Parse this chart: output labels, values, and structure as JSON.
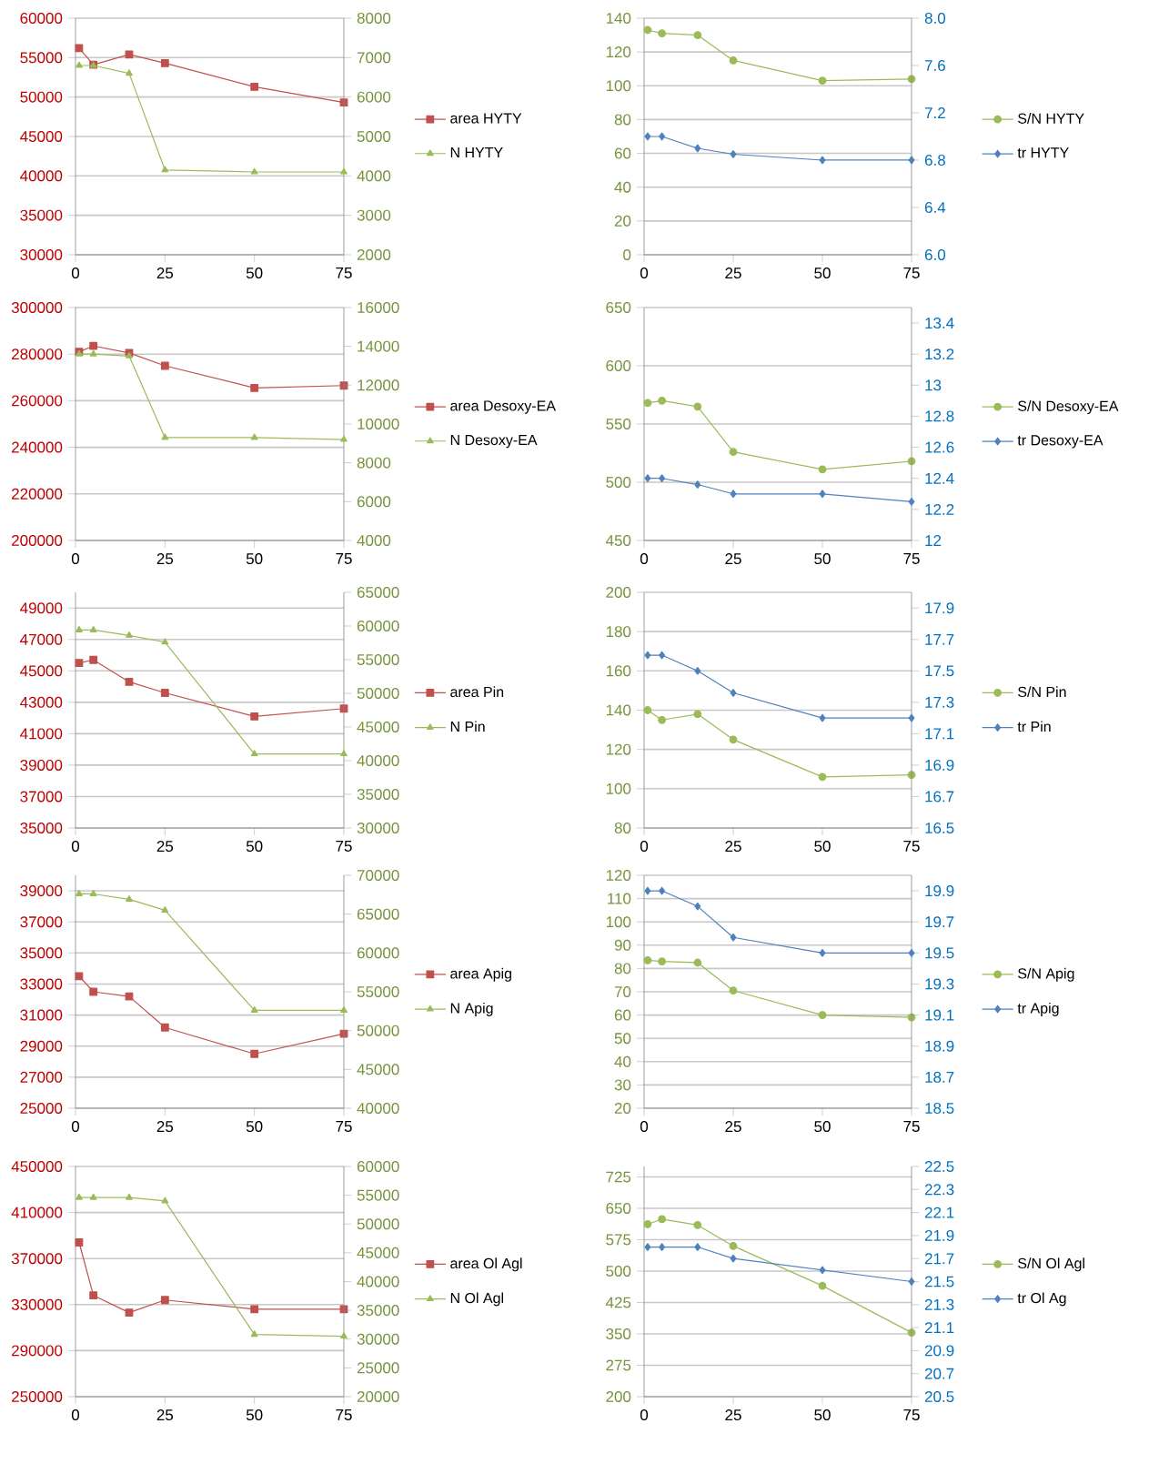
{
  "chart_data": [
    {
      "type": "line",
      "x": [
        1,
        5,
        15,
        25,
        50,
        75
      ],
      "xlim": [
        0,
        75
      ],
      "xticks": [
        0,
        25,
        50,
        75
      ],
      "ylim": [
        30000,
        60000
      ],
      "yticks": [
        30000,
        35000,
        40000,
        45000,
        50000,
        55000,
        60000
      ],
      "y2lim": [
        2000,
        8000
      ],
      "y2ticks": [
        2000,
        3000,
        4000,
        5000,
        6000,
        7000,
        8000
      ],
      "grid": "y",
      "legend": "right",
      "series": [
        {
          "name": "area HYTY",
          "color": "#c0504d",
          "marker": "square",
          "values": [
            56200,
            54100,
            55400,
            54300,
            51300,
            49300
          ]
        },
        {
          "name": "N HYTY",
          "color": "#9bbb59",
          "marker": "triangle",
          "axis": "y2",
          "values": [
            6800,
            6800,
            6600,
            4150,
            4100,
            4100
          ]
        }
      ]
    },
    {
      "type": "line",
      "x": [
        1,
        5,
        15,
        25,
        50,
        75
      ],
      "xlim": [
        0,
        75
      ],
      "xticks": [
        0,
        25,
        50,
        75
      ],
      "ylim": [
        0,
        140
      ],
      "yticks": [
        0,
        20,
        40,
        60,
        80,
        100,
        120,
        140
      ],
      "y2lim": [
        6.0,
        8.0
      ],
      "y2ticks": [
        {
          "value": 6.0,
          "label": "6.0"
        },
        6.4,
        6.8,
        7.2,
        7.6,
        {
          "value": 8.0,
          "label": "8.0"
        }
      ],
      "grid": "y",
      "legend": "right",
      "series": [
        {
          "name": "S/N HYTY",
          "color": "#9bbb59",
          "marker": "circle",
          "values": [
            133,
            131,
            130,
            115,
            103,
            104
          ]
        },
        {
          "name": "tr HYTY",
          "color": "#4f81bd",
          "marker": "diamond",
          "axis": "y2",
          "values": [
            7.0,
            7.0,
            6.9,
            6.85,
            6.8,
            6.8
          ]
        }
      ]
    },
    {
      "type": "line",
      "x": [
        1,
        5,
        15,
        25,
        50,
        75
      ],
      "xlim": [
        0,
        75
      ],
      "xticks": [
        0,
        25,
        50,
        75
      ],
      "ylim": [
        200000,
        300000
      ],
      "yticks": [
        200000,
        220000,
        240000,
        260000,
        280000,
        300000
      ],
      "y2lim": [
        4000,
        16000
      ],
      "y2ticks": [
        4000,
        6000,
        8000,
        10000,
        12000,
        14000,
        16000
      ],
      "grid": "y",
      "legend": "right",
      "series": [
        {
          "name": "area Desoxy-EA",
          "color": "#c0504d",
          "marker": "square",
          "values": [
            281000,
            283500,
            280500,
            275000,
            265500,
            266500
          ]
        },
        {
          "name": "N Desoxy-EA",
          "color": "#9bbb59",
          "marker": "triangle",
          "axis": "y2",
          "values": [
            13600,
            13600,
            13500,
            9300,
            9300,
            9200
          ]
        }
      ]
    },
    {
      "type": "line",
      "x": [
        1,
        5,
        15,
        25,
        50,
        75
      ],
      "xlim": [
        0,
        75
      ],
      "xticks": [
        0,
        25,
        50,
        75
      ],
      "ylim": [
        450,
        650
      ],
      "yticks": [
        450,
        500,
        550,
        600,
        650
      ],
      "y2lim": [
        12,
        13.5
      ],
      "y2ticks": [
        12,
        12.2,
        12.4,
        12.6,
        12.8,
        13,
        13.2,
        13.4
      ],
      "grid": "y",
      "legend": "right",
      "series": [
        {
          "name": "S/N Desoxy-EA",
          "color": "#9bbb59",
          "marker": "circle",
          "values": [
            568,
            570,
            565,
            526,
            511,
            518
          ]
        },
        {
          "name": "tr Desoxy-EA",
          "color": "#4f81bd",
          "marker": "diamond",
          "axis": "y2",
          "values": [
            12.4,
            12.4,
            12.36,
            12.3,
            12.3,
            12.25
          ]
        }
      ]
    },
    {
      "type": "line",
      "x": [
        1,
        5,
        15,
        25,
        50,
        75
      ],
      "xlim": [
        0,
        75
      ],
      "xticks": [
        0,
        25,
        50,
        75
      ],
      "ylim": [
        35000,
        50000
      ],
      "yticks": [
        35000,
        37000,
        39000,
        41000,
        43000,
        45000,
        47000,
        49000
      ],
      "y2lim": [
        30000,
        65000
      ],
      "y2ticks": [
        30000,
        35000,
        40000,
        45000,
        50000,
        55000,
        60000,
        65000
      ],
      "grid": "y",
      "legend": "right",
      "series": [
        {
          "name": "area Pin",
          "color": "#c0504d",
          "marker": "square",
          "values": [
            45500,
            45700,
            44300,
            43600,
            42100,
            42600
          ]
        },
        {
          "name": "N Pin",
          "color": "#9bbb59",
          "marker": "triangle",
          "axis": "y2",
          "values": [
            59400,
            59400,
            58600,
            57600,
            41000,
            41000
          ]
        }
      ]
    },
    {
      "type": "line",
      "x": [
        1,
        5,
        15,
        25,
        50,
        75
      ],
      "xlim": [
        0,
        75
      ],
      "xticks": [
        0,
        25,
        50,
        75
      ],
      "ylim": [
        80,
        200
      ],
      "yticks": [
        80,
        100,
        120,
        140,
        160,
        180,
        200
      ],
      "y2lim": [
        16.5,
        18.0
      ],
      "y2ticks": [
        16.5,
        16.7,
        16.9,
        17.1,
        17.3,
        17.5,
        17.7,
        17.9
      ],
      "grid": "y",
      "legend": "right",
      "series": [
        {
          "name": "S/N Pin",
          "color": "#9bbb59",
          "marker": "circle",
          "values": [
            140,
            135,
            138,
            125,
            106,
            107
          ]
        },
        {
          "name": "tr Pin",
          "color": "#4f81bd",
          "marker": "diamond",
          "axis": "y2",
          "values": [
            17.6,
            17.6,
            17.5,
            17.36,
            17.2,
            17.2
          ]
        }
      ]
    },
    {
      "type": "line",
      "x": [
        1,
        5,
        15,
        25,
        50,
        75
      ],
      "xlim": [
        0,
        75
      ],
      "xticks": [
        0,
        25,
        50,
        75
      ],
      "ylim": [
        25000,
        40000
      ],
      "yticks": [
        25000,
        27000,
        29000,
        31000,
        33000,
        35000,
        37000,
        39000
      ],
      "y2lim": [
        40000,
        70000
      ],
      "y2ticks": [
        40000,
        45000,
        50000,
        55000,
        60000,
        65000,
        70000
      ],
      "grid": "y",
      "legend": "right",
      "series": [
        {
          "name": "area Apig",
          "color": "#c0504d",
          "marker": "square",
          "values": [
            33500,
            32500,
            32200,
            30200,
            28500,
            29800
          ]
        },
        {
          "name": "N Apig",
          "color": "#9bbb59",
          "marker": "triangle",
          "axis": "y2",
          "values": [
            67600,
            67600,
            66900,
            65500,
            52600,
            52600
          ]
        }
      ]
    },
    {
      "type": "line",
      "x": [
        1,
        5,
        15,
        25,
        50,
        75
      ],
      "xlim": [
        0,
        75
      ],
      "xticks": [
        0,
        25,
        50,
        75
      ],
      "ylim": [
        20,
        120
      ],
      "yticks": [
        20,
        30,
        40,
        50,
        60,
        70,
        80,
        90,
        100,
        110,
        120
      ],
      "y2lim": [
        18.5,
        20.0
      ],
      "y2ticks": [
        18.5,
        18.7,
        18.9,
        19.1,
        19.3,
        19.5,
        19.7,
        19.9
      ],
      "grid": "y",
      "legend": "right",
      "series": [
        {
          "name": "S/N Apig",
          "color": "#9bbb59",
          "marker": "circle",
          "values": [
            83.5,
            83,
            82.5,
            70.5,
            60,
            59
          ]
        },
        {
          "name": "tr Apig",
          "color": "#4f81bd",
          "marker": "diamond",
          "axis": "y2",
          "values": [
            19.9,
            19.9,
            19.8,
            19.6,
            19.5,
            19.5
          ]
        }
      ]
    },
    {
      "type": "line",
      "x": [
        1,
        5,
        15,
        25,
        50,
        75
      ],
      "xlim": [
        0,
        75
      ],
      "xticks": [
        0,
        25,
        50,
        75
      ],
      "ylim": [
        250000,
        450000
      ],
      "yticks": [
        250000,
        290000,
        330000,
        370000,
        410000,
        450000
      ],
      "y2lim": [
        20000,
        60000
      ],
      "y2ticks": [
        20000,
        25000,
        30000,
        35000,
        40000,
        45000,
        50000,
        55000,
        60000
      ],
      "grid": "y",
      "legend": "right",
      "series": [
        {
          "name": "area Ol Agl",
          "color": "#c0504d",
          "marker": "square",
          "values": [
            384000,
            338000,
            323000,
            334000,
            326000,
            326000
          ]
        },
        {
          "name": "N Ol Agl",
          "color": "#9bbb59",
          "marker": "triangle",
          "axis": "y2",
          "values": [
            54600,
            54600,
            54600,
            54000,
            30800,
            30500
          ]
        }
      ]
    },
    {
      "type": "line",
      "x": [
        1,
        5,
        15,
        25,
        50,
        75
      ],
      "xlim": [
        0,
        75
      ],
      "xticks": [
        0,
        25,
        50,
        75
      ],
      "ylim": [
        200,
        750
      ],
      "yticks": [
        200,
        275,
        350,
        425,
        500,
        575,
        650,
        725
      ],
      "y2lim": [
        20.5,
        22.5
      ],
      "y2ticks": [
        20.5,
        20.7,
        20.9,
        21.1,
        21.3,
        21.5,
        21.7,
        21.9,
        22.1,
        22.3,
        22.5
      ],
      "grid": "y",
      "legend": "right",
      "series": [
        {
          "name": "S/N Ol Agl",
          "color": "#9bbb59",
          "marker": "circle",
          "values": [
            612,
            624,
            610,
            560,
            465,
            353
          ]
        },
        {
          "name": "tr Ol Ag",
          "color": "#4f81bd",
          "marker": "diamond",
          "axis": "y2",
          "values": [
            21.8,
            21.8,
            21.8,
            21.7,
            21.6,
            21.5
          ]
        }
      ]
    }
  ]
}
